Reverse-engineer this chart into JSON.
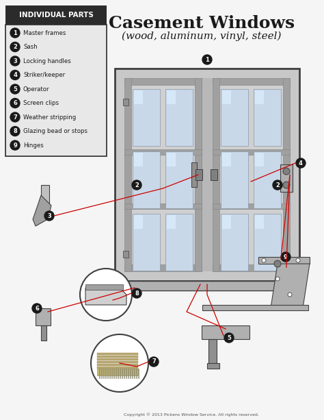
{
  "title": "Casement Windows",
  "subtitle": "(wood, aluminum, vinyl, steel)",
  "bg_color": "#f5f5f5",
  "legend_title": "INDIVIDUAL PARTS",
  "legend_bg": "#2b2b2b",
  "legend_items": [
    "Master frames",
    "Sash",
    "Locking handles",
    "Striker/keeper",
    "Operator",
    "Screen clips",
    "Weather stripping",
    "Glazing bead or stops",
    "Hinges"
  ],
  "copyright": "Copyright © 2013 Pickens Window Service. All rights reserved.",
  "red_line_color": "#cc0000",
  "frame_color": "#b0b0b0",
  "glass_color": "#c8d8e8",
  "dark_color": "#404040"
}
